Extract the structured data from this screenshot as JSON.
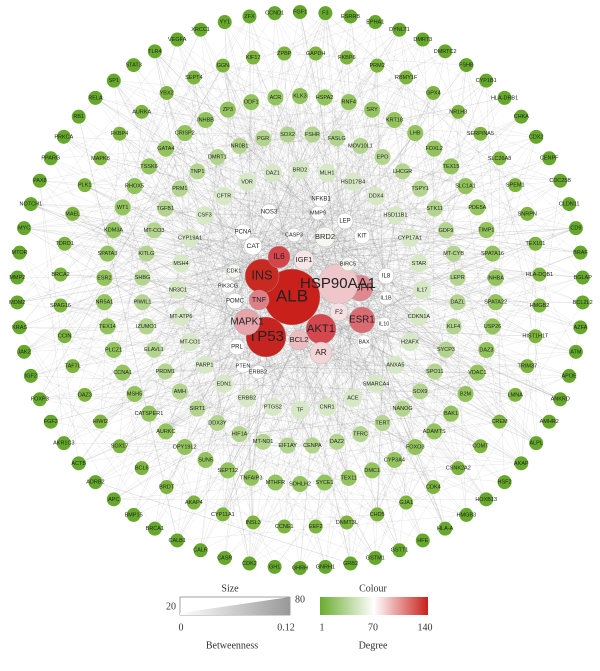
{
  "network": {
    "core": [
      {
        "label": "ALB",
        "color": "#c9201b"
      },
      {
        "label": "INS",
        "color": "#c82a22"
      },
      {
        "label": "TP53",
        "color": "#c62420"
      },
      {
        "label": "IL6",
        "color": "#d3454a"
      },
      {
        "label": "AKT1",
        "color": "#d4474f"
      },
      {
        "label": "ESR1",
        "color": "#db6b73"
      },
      {
        "label": "EGFR",
        "color": "#e08790"
      },
      {
        "label": "MAPK1",
        "color": "#e6a4ab"
      },
      {
        "label": "TNF",
        "color": "#de7f88"
      },
      {
        "label": "HSP90AA1",
        "color": "#efc6ca"
      },
      {
        "label": "IGF1",
        "color": "#f7e6e7"
      },
      {
        "label": "BCL2",
        "color": "#ecbcc1"
      },
      {
        "label": "AR",
        "color": "#f3d4d7"
      },
      {
        "label": "F2",
        "color": "#f6e0e2"
      },
      {
        "label": "IL8",
        "color": "#ffffff"
      },
      {
        "label": "CAT",
        "color": "#ffffff"
      },
      {
        "label": "PCNA",
        "color": "#ffffff"
      },
      {
        "label": "BRD2",
        "color": "#f7f7f2"
      },
      {
        "label": "LEP",
        "color": "#ffffff"
      },
      {
        "label": "KIT",
        "color": "#ffffff"
      },
      {
        "label": "BIRC5",
        "color": "#f4f8ef"
      },
      {
        "label": "CDK1",
        "color": "#f4f8ef"
      },
      {
        "label": "CASP3",
        "color": "#ffffff"
      },
      {
        "label": "MMP9",
        "color": "#ffffff"
      },
      {
        "label": "NOS3",
        "color": "#ffffff"
      },
      {
        "label": "PRL",
        "color": "#ffffff"
      },
      {
        "label": "POMC",
        "color": "#ffffff"
      },
      {
        "label": "PTEN",
        "color": "#ffffff"
      },
      {
        "label": "ERBB2",
        "color": "#ffffff"
      },
      {
        "label": "PIK3CG",
        "color": "#ffffff"
      },
      {
        "label": "IL1B",
        "color": "#ffffff"
      },
      {
        "label": "IL10",
        "color": "#ffffff"
      },
      {
        "label": "BAX",
        "color": "#ffffff"
      },
      {
        "label": "NFKB1",
        "color": "#ffffff"
      }
    ],
    "rings": [
      {
        "color": "#d7e8c6",
        "labels": [
          "BRD2",
          "MLH1",
          "HSD17B4",
          "DDX4",
          "HSD11B1",
          "CYP17A1",
          "STAR",
          "IL17",
          "CDKN1A",
          "H2AFX",
          "ANXA5",
          "SMARCA4",
          "ACE",
          "CNR1",
          "TF",
          "PTGS2",
          "ERBB2",
          "EDN1",
          "PARP1",
          "MT-CO1",
          "MT-ATP6",
          "NR3C1",
          "MSH4",
          "CYP19A1",
          "CSF3",
          "CFTR",
          "VDR",
          "DAZ1"
        ]
      },
      {
        "color": "#b3d48e",
        "labels": [
          "FSHR",
          "FASLG",
          "MOV10L1",
          "EPO",
          "LHCGR",
          "TSPY1",
          "STK11",
          "GDF9",
          "MT-CYB",
          "LEPR",
          "DAZL",
          "KLF4",
          "SYCP3",
          "SPO11",
          "SOX9",
          "NANOG",
          "TERT",
          "TFRC",
          "DAZ2",
          "CENPA",
          "EIF1AY",
          "MT-ND1",
          "HIF1A",
          "DDX3Y",
          "SIRT1",
          "AMH",
          "PRDM1",
          "ELAVL1",
          "IZUMO1",
          "PIWIL1",
          "SHBG",
          "KITLG",
          "MT-CO3",
          "TGFB1",
          "PRM1",
          "TNP1",
          "DMRT1",
          "NR0B1",
          "PGR",
          "SOX2"
        ]
      },
      {
        "color": "#93c35c",
        "labels": [
          "KLK3",
          "HSPA2",
          "RNF4",
          "SRY",
          "KRT18",
          "LHB",
          "FOXL2",
          "TEX15",
          "SLC1A1",
          "PDE5A",
          "TIMP1",
          "SPATA16",
          "INHBA",
          "SPATA22",
          "USP26",
          "DAZ3",
          "VDAC1",
          "B2M",
          "BAK1",
          "ADAMTS",
          "FOXO3",
          "CYP3A4",
          "DMC1",
          "TEX11",
          "SYCE1",
          "SOHLH2",
          "MTHFR",
          "TNFAIP3",
          "SEPT12",
          "SUN5",
          "DPY19L2",
          "AURKC",
          "CATSPER1",
          "MSH5",
          "CCNA1",
          "PLCZ1",
          "TEX14",
          "NR5A1",
          "ESR2",
          "SPATA3",
          "KDM3A",
          "WT1",
          "RHOX5",
          "TSSK6",
          "GATA4",
          "CRISP2",
          "INHBB",
          "ZP3",
          "ODF1",
          "ACR"
        ]
      },
      {
        "color": "#7cb43e",
        "labels": [
          "GAPDH",
          "FKBP6",
          "PRM2",
          "RBMY1F",
          "GPX4",
          "NR1H3",
          "SERPINA5",
          "SLC26A8",
          "SPEM1",
          "SNRPN",
          "TEX101",
          "HLA-DQB1",
          "HMGB2",
          "HIST1H1T",
          "TRIM37",
          "LMNA",
          "CREM",
          "COMT",
          "CSNK2A2",
          "CDK4",
          "GJA1",
          "CHD5",
          "DNMT3L",
          "EEF2",
          "CCNE1",
          "INSL3",
          "CYP11A1",
          "AKAP4",
          "BRDT",
          "BCL6",
          "SOX17",
          "HIWI2",
          "OAZ3",
          "TAF7L",
          "CCIN",
          "SPAG16",
          "BRCA2",
          "TDRD1",
          "MAEL",
          "PLK1",
          "MAPK8",
          "FKBP4",
          "AURKA",
          "YBX2",
          "SEPT4",
          "GGN",
          "KIF17",
          "ZPBP"
        ]
      },
      {
        "color": "#66a82c",
        "labels": [
          "FGF1",
          "F3",
          "ESRRB",
          "EPHA1",
          "DYNLT1",
          "DMRT3",
          "DMRTC2",
          "FSHB",
          "CYP1B1",
          "HLA-DRB1",
          "CHKA",
          "CDX2",
          "CENPF",
          "CDC25B",
          "CLDN11",
          "CD9",
          "BRAF",
          "BGLAP",
          "BCL2L2",
          "AZFA",
          "ATM",
          "APOE",
          "ANKRD",
          "AMHR2",
          "ALPL",
          "AKAP",
          "HSF2",
          "HOXB13",
          "HMGB3",
          "HLA-A",
          "HFE",
          "GSTT1",
          "GSTM1",
          "GRB2",
          "GNRH1",
          "GHRH",
          "GH1",
          "CDK2",
          "CASR",
          "CALR",
          "CALB1",
          "BRCA1",
          "BMP15",
          "APC",
          "ADRB2",
          "ACTB",
          "AKR1C3",
          "FGF2",
          "FOXP3",
          "IGF2",
          "JAK2",
          "KRAS",
          "MDM2",
          "MMP2",
          "MTOR",
          "MYC",
          "NOTCH1",
          "PAX8",
          "PPARG",
          "PRKCA",
          "RB1",
          "RELA",
          "SP1",
          "STAT3",
          "TLR4",
          "VEGFA",
          "XRCC1",
          "YY1",
          "ZFX",
          "CCND1"
        ]
      }
    ],
    "legend": {
      "size": {
        "title": "Size",
        "min": "20",
        "max": "80",
        "scale_min": "0",
        "scale_max": "0.12",
        "measure": "Betweenness"
      },
      "colour": {
        "title": "Colour",
        "min": "1",
        "mid": "70",
        "max": "140",
        "measure": "Degree",
        "colors": [
          "#6aac2f",
          "#ffffff",
          "#c9201b"
        ]
      }
    }
  }
}
